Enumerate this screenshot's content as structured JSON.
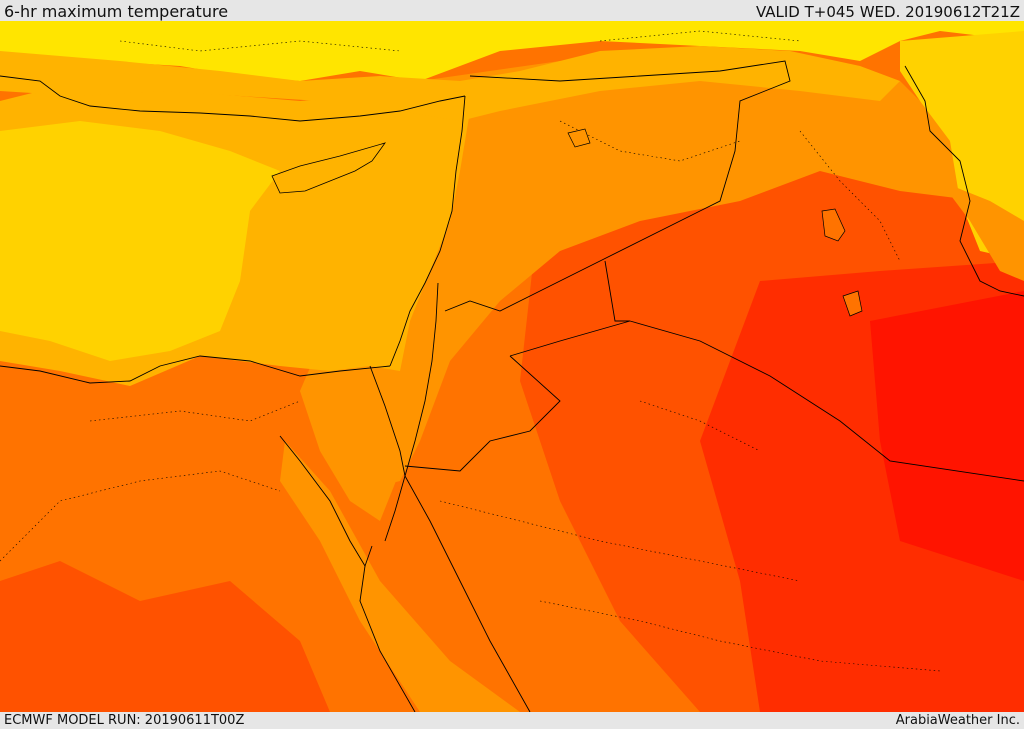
{
  "header": {
    "title": "6-hr maximum temperature",
    "valid": "VALID T+045 WED. 20190612T21Z"
  },
  "footer": {
    "model_run": "ECMWF MODEL RUN: 20190611T00Z",
    "credit": "ArabiaWeather Inc."
  },
  "palette": {
    "yellow": "#ffe500",
    "light_yellow": "#ffd200",
    "amber": "#ffb300",
    "orange": "#ff9400",
    "dark_orange": "#ff7300",
    "red_orange": "#ff5200",
    "red": "#ff2d00",
    "deep_red": "#ff1400",
    "border": "#000000"
  }
}
